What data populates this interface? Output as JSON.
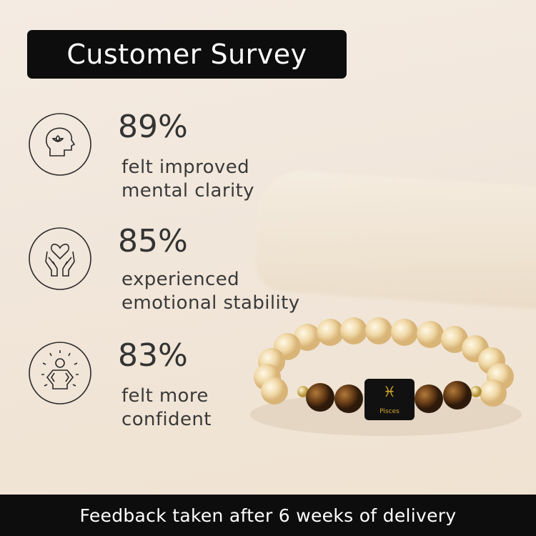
{
  "title": "Customer Survey",
  "stats": [
    {
      "percent": "89%",
      "line1": "felt improved",
      "line2": "mental clarity",
      "icon": "head-lotus-icon"
    },
    {
      "percent": "85%",
      "line1": "experienced",
      "line2": "emotional stability",
      "icon": "hands-heart-icon"
    },
    {
      "percent": "83%",
      "line1": "felt more",
      "line2": "confident",
      "icon": "confident-person-icon"
    }
  ],
  "product": {
    "bead_engraving": "Pisces"
  },
  "footer": "Feedback taken after 6 weeks of delivery",
  "colors": {
    "banner": "#0d0d0d",
    "background": "#f2e8dc",
    "text": "#333333"
  }
}
